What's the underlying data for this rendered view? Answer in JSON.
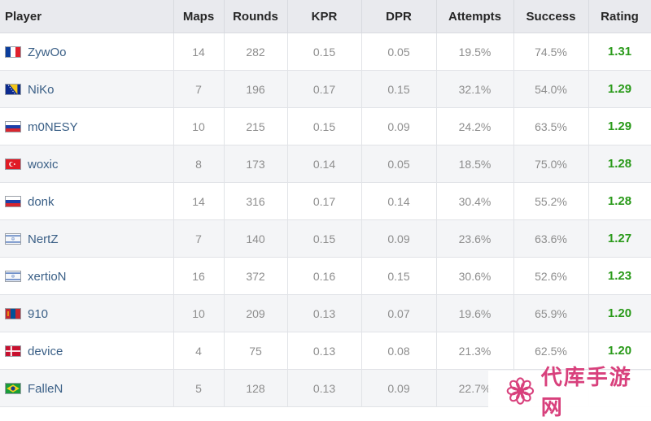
{
  "columns": {
    "player": "Player",
    "maps": "Maps",
    "rounds": "Rounds",
    "kpr": "KPR",
    "dpr": "DPR",
    "attempts": "Attempts",
    "success": "Success",
    "rating": "Rating"
  },
  "rows": [
    {
      "player": "ZywOo",
      "flag": "france",
      "maps": "14",
      "rounds": "282",
      "kpr": "0.15",
      "dpr": "0.05",
      "attempts": "19.5%",
      "success": "74.5%",
      "rating": "1.31"
    },
    {
      "player": "NiKo",
      "flag": "bosnia",
      "maps": "7",
      "rounds": "196",
      "kpr": "0.17",
      "dpr": "0.15",
      "attempts": "32.1%",
      "success": "54.0%",
      "rating": "1.29"
    },
    {
      "player": "m0NESY",
      "flag": "russia",
      "maps": "10",
      "rounds": "215",
      "kpr": "0.15",
      "dpr": "0.09",
      "attempts": "24.2%",
      "success": "63.5%",
      "rating": "1.29"
    },
    {
      "player": "woxic",
      "flag": "turkey",
      "maps": "8",
      "rounds": "173",
      "kpr": "0.14",
      "dpr": "0.05",
      "attempts": "18.5%",
      "success": "75.0%",
      "rating": "1.28"
    },
    {
      "player": "donk",
      "flag": "russia",
      "maps": "14",
      "rounds": "316",
      "kpr": "0.17",
      "dpr": "0.14",
      "attempts": "30.4%",
      "success": "55.2%",
      "rating": "1.28"
    },
    {
      "player": "NertZ",
      "flag": "israel",
      "maps": "7",
      "rounds": "140",
      "kpr": "0.15",
      "dpr": "0.09",
      "attempts": "23.6%",
      "success": "63.6%",
      "rating": "1.27"
    },
    {
      "player": "xertioN",
      "flag": "israel",
      "maps": "16",
      "rounds": "372",
      "kpr": "0.16",
      "dpr": "0.15",
      "attempts": "30.6%",
      "success": "52.6%",
      "rating": "1.23"
    },
    {
      "player": "910",
      "flag": "mongolia",
      "maps": "10",
      "rounds": "209",
      "kpr": "0.13",
      "dpr": "0.07",
      "attempts": "19.6%",
      "success": "65.9%",
      "rating": "1.20"
    },
    {
      "player": "device",
      "flag": "denmark",
      "maps": "4",
      "rounds": "75",
      "kpr": "0.13",
      "dpr": "0.08",
      "attempts": "21.3%",
      "success": "62.5%",
      "rating": "1.20"
    },
    {
      "player": "FalleN",
      "flag": "brazil",
      "maps": "5",
      "rounds": "128",
      "kpr": "0.13",
      "dpr": "0.09",
      "attempts": "22.7%",
      "success": "",
      "rating": ""
    }
  ],
  "watermark": {
    "text": "代库手游网",
    "logo": "flower-logo-icon"
  },
  "colors": {
    "header_bg": "#e9eaee",
    "link": "#3a5f86",
    "rating": "#2a9a1a",
    "stripe": "#f4f5f7",
    "watermark": "#d8407c"
  }
}
